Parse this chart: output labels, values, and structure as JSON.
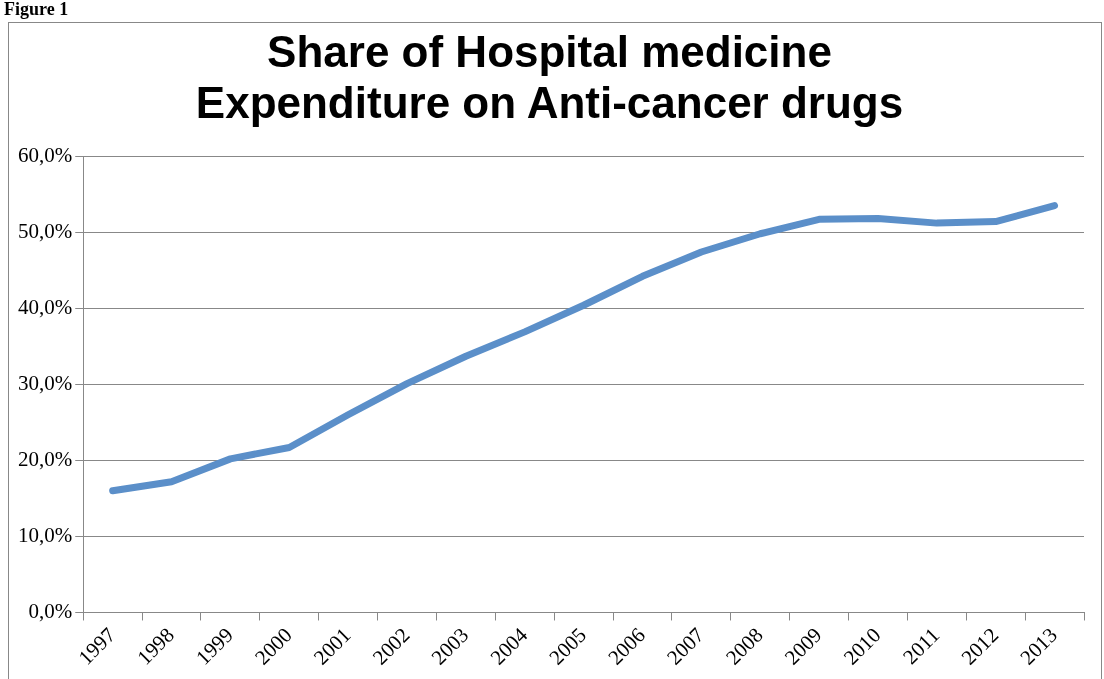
{
  "chart_data": {
    "type": "line",
    "title": "Share of Hospital medicine\nExpenditure on Anti-cancer drugs",
    "annotations": [
      "Figure 1"
    ],
    "categories": [
      "1997",
      "1998",
      "1999",
      "2000",
      "2001",
      "2002",
      "2003",
      "2004",
      "2005",
      "2006",
      "2007",
      "2008",
      "2009",
      "2010",
      "2011",
      "2012",
      "2013"
    ],
    "series": [
      {
        "color": "#5b8fc9",
        "values": [
          16.0,
          17.2,
          20.2,
          21.7,
          26.0,
          30.1,
          33.7,
          36.9,
          40.4,
          44.2,
          47.4,
          49.8,
          51.7,
          51.8,
          51.2,
          51.4,
          53.5
        ]
      }
    ],
    "ylim": [
      0,
      60
    ],
    "yticks": [
      {
        "value": 0,
        "label": "0,0%"
      },
      {
        "value": 10,
        "label": "10,0%"
      },
      {
        "value": 20,
        "label": "20,0%"
      },
      {
        "value": 30,
        "label": "30,0%"
      },
      {
        "value": 40,
        "label": "40,0%"
      },
      {
        "value": 50,
        "label": "50,0%"
      },
      {
        "value": 60,
        "label": "60,0%"
      }
    ],
    "grid": "y",
    "legend": false,
    "marker": "none",
    "line_style": "solid"
  }
}
